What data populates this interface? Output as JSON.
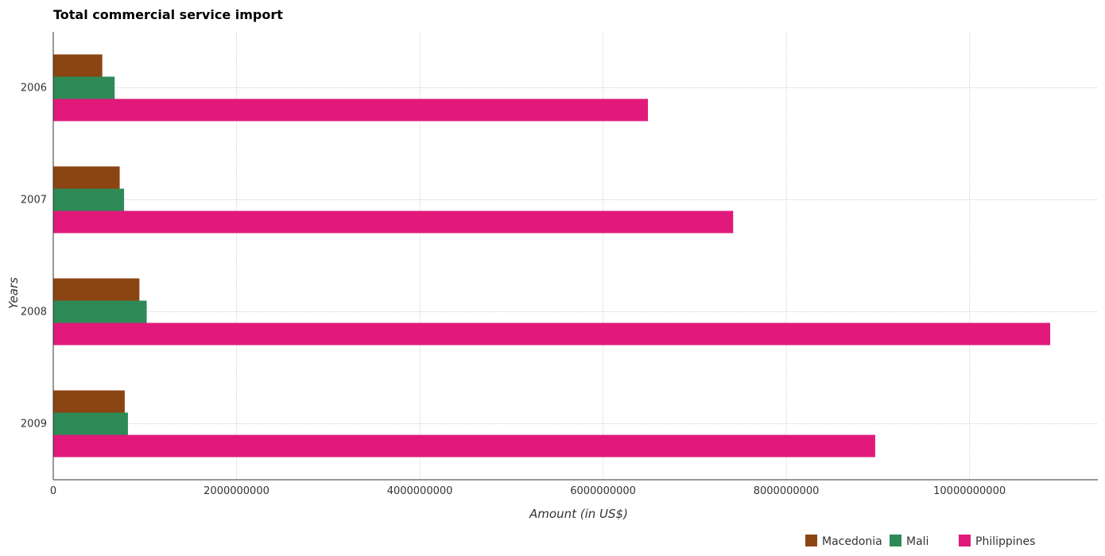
{
  "chart_data": {
    "type": "bar",
    "orientation": "horizontal",
    "title": "Total commercial service import",
    "xlabel": "Amount (in US$)",
    "ylabel": "Years",
    "categories": [
      "2006",
      "2007",
      "2008",
      "2009"
    ],
    "series": [
      {
        "name": "Macedonia",
        "color": "#8b4513",
        "values": [
          535000000,
          725000000,
          940000000,
          780000000
        ]
      },
      {
        "name": "Mali",
        "color": "#2e8b57",
        "values": [
          670000000,
          773000000,
          1020000000,
          815000000
        ]
      },
      {
        "name": "Philippines",
        "color": "#e0197a",
        "values": [
          6490000000,
          7420000000,
          10880000000,
          8970000000
        ]
      }
    ],
    "xlim": [
      0,
      11400000000
    ],
    "xticks": [
      0,
      2000000000,
      4000000000,
      6000000000,
      8000000000,
      10000000000
    ],
    "xtick_labels": [
      "0",
      "2000000000",
      "4000000000",
      "6000000000",
      "8000000000",
      "10000000000"
    ],
    "grid": true,
    "legend_position": "bottom-right"
  }
}
